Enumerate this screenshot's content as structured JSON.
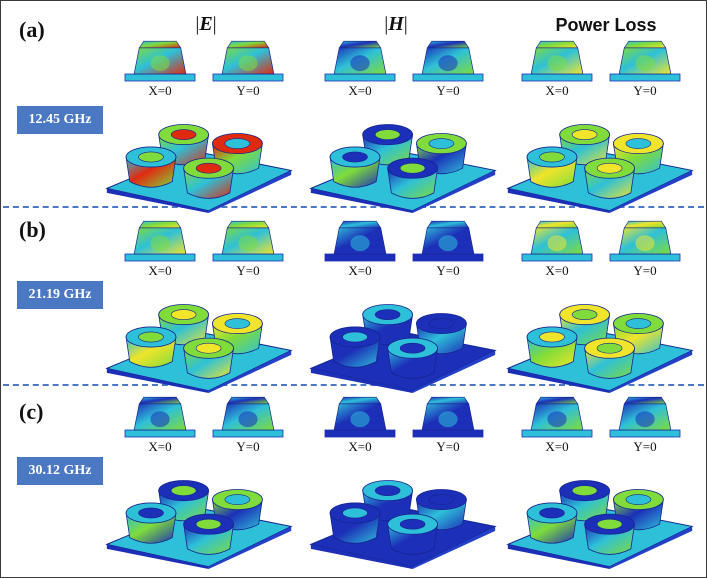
{
  "column_headers": [
    {
      "name": "E-field",
      "text": "E"
    },
    {
      "name": "H-field",
      "text": "H"
    },
    {
      "name": "power-loss",
      "text": "Power Loss"
    }
  ],
  "section_labels": [
    "X=0",
    "Y=0"
  ],
  "rows": [
    {
      "letter": "(a)",
      "frequency": "12.45 GHz"
    },
    {
      "letter": "(b)",
      "frequency": "21.19 GHz"
    },
    {
      "letter": "(c)",
      "frequency": "30.12 GHz"
    }
  ],
  "colors": {
    "badge": "#4a78c2",
    "divider": "#4a78c2",
    "field_low": "#1c2fb8",
    "field_mid": "#2ec0d8",
    "field_high_green": "#7fdc3a",
    "field_high_yellow": "#f0e52a",
    "field_max": "#e02a10"
  }
}
